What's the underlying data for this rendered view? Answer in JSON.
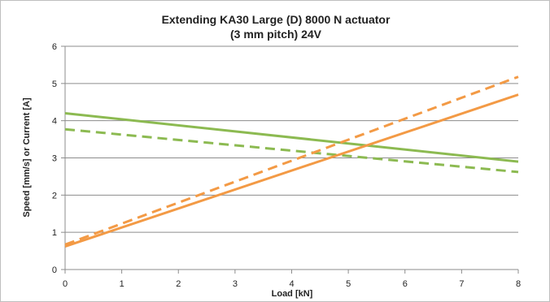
{
  "chart_data": {
    "type": "line",
    "title_lines": [
      "Extending KA30 Large (D) 8000 N actuator",
      "(3 mm pitch) 24V"
    ],
    "xlabel": "Load [kN]",
    "ylabel": "Speed [mm/s] or Current [A]",
    "xlim": [
      0,
      8
    ],
    "ylim": [
      0,
      6
    ],
    "x_ticks": [
      "0",
      "1",
      "2",
      "3",
      "4",
      "5",
      "6",
      "7",
      "8"
    ],
    "y_ticks": [
      "0",
      "1",
      "2",
      "3",
      "4",
      "5",
      "6"
    ],
    "grid": "horizontal",
    "legend": "none",
    "series": [
      {
        "color": "#8cba51",
        "dash": "solid",
        "x": [
          0,
          8
        ],
        "y": [
          4.2,
          2.9
        ]
      },
      {
        "color": "#8cba51",
        "dash": "dashed",
        "x": [
          0,
          8
        ],
        "y": [
          3.77,
          2.62
        ]
      },
      {
        "color": "#f39a45",
        "dash": "solid",
        "x": [
          0,
          8
        ],
        "y": [
          0.62,
          4.7
        ]
      },
      {
        "color": "#f39a45",
        "dash": "dashed",
        "x": [
          0,
          8
        ],
        "y": [
          0.67,
          5.18
        ]
      }
    ]
  }
}
